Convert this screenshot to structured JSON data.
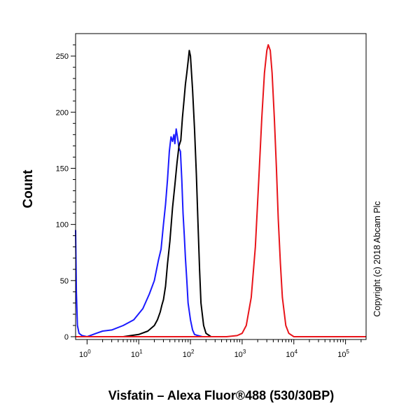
{
  "chart_data": {
    "type": "line",
    "xlabel": "Visfatin – Alexa Fluor®488 (530/30BP)",
    "ylabel": "Count",
    "annotation": "Copyright (c) 2018 Abcam Plc",
    "x_scale": "log",
    "xlim": [
      0.6,
      250000
    ],
    "ylim": [
      0,
      270
    ],
    "x_ticks": [
      {
        "base": "10",
        "exp": "0",
        "value": 1
      },
      {
        "base": "10",
        "exp": "1",
        "value": 10
      },
      {
        "base": "10",
        "exp": "2",
        "value": 100
      },
      {
        "base": "10",
        "exp": "3",
        "value": 1000
      },
      {
        "base": "10",
        "exp": "4",
        "value": 10000
      },
      {
        "base": "10",
        "exp": "5",
        "value": 100000
      }
    ],
    "y_ticks": [
      0,
      50,
      100,
      150,
      200,
      250
    ],
    "series": [
      {
        "color": "#1a1aff",
        "x": [
          0.6,
          0.62,
          0.65,
          0.7,
          0.8,
          1.0,
          1.5,
          2,
          3,
          5,
          8,
          12,
          16,
          20,
          24,
          27,
          30,
          33,
          36,
          39,
          42,
          45,
          48,
          50,
          53,
          56,
          60,
          64,
          68,
          72,
          76,
          80,
          85,
          90,
          100,
          110,
          120,
          140,
          170,
          200,
          300
        ],
        "y": [
          95,
          40,
          10,
          3,
          1,
          0,
          3,
          5,
          6,
          10,
          15,
          25,
          38,
          50,
          68,
          78,
          100,
          118,
          140,
          165,
          178,
          174,
          180,
          172,
          185,
          178,
          168,
          165,
          140,
          110,
          90,
          70,
          50,
          30,
          15,
          6,
          2,
          1,
          0,
          0,
          0
        ]
      },
      {
        "color": "#000000",
        "x": [
          0.6,
          5,
          10,
          15,
          20,
          23,
          26,
          28,
          30,
          33,
          36,
          40,
          45,
          50,
          55,
          60,
          65,
          70,
          75,
          80,
          85,
          90,
          95,
          100,
          110,
          120,
          130,
          140,
          150,
          160,
          180,
          200,
          250,
          400
        ],
        "y": [
          0,
          0,
          2,
          5,
          10,
          15,
          22,
          28,
          33,
          45,
          65,
          85,
          115,
          135,
          155,
          170,
          175,
          195,
          210,
          225,
          235,
          245,
          255,
          250,
          220,
          185,
          145,
          100,
          60,
          30,
          10,
          3,
          0,
          0
        ]
      },
      {
        "color": "#e8141a",
        "x": [
          0.6,
          500,
          800,
          1000,
          1200,
          1500,
          1800,
          2100,
          2400,
          2700,
          3000,
          3200,
          3500,
          3800,
          4200,
          4600,
          5000,
          5500,
          6000,
          7000,
          8000,
          10000,
          250000
        ],
        "y": [
          0,
          0,
          1,
          3,
          10,
          35,
          80,
          140,
          195,
          235,
          255,
          260,
          255,
          235,
          195,
          150,
          105,
          65,
          35,
          10,
          3,
          0,
          0
        ]
      }
    ]
  }
}
